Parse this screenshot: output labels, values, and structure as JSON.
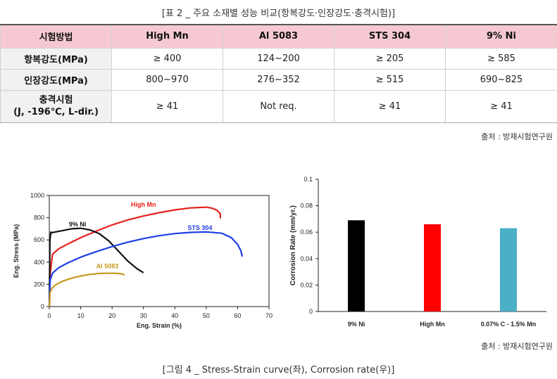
{
  "table_caption": "[표 2 _ 주요 소재별 성능 비교(항복강도·인장강도·충격시험)]",
  "table": {
    "headers": [
      "시험방법",
      "High Mn",
      "Al 5083",
      "STS 304",
      "9% Ni"
    ],
    "rows": [
      {
        "label": "항복강도(MPa)",
        "label_line2": "",
        "cells": [
          "≥ 400",
          "124~200",
          "≥ 205",
          "≥ 585"
        ]
      },
      {
        "label": "인장강도(MPa)",
        "label_line2": "",
        "cells": [
          "800~970",
          "276~352",
          "≥ 515",
          "690~825"
        ]
      },
      {
        "label": "충격시험",
        "label_line2": "(J, -196℃, L-dir.)",
        "cells": [
          "≥ 41",
          "Not req.",
          "≥ 41",
          "≥ 41"
        ]
      }
    ]
  },
  "source_top": "출처 : 방재시험연구원",
  "source_bottom": "출처 : 방재시험연구원",
  "figure_caption": "[그림 4 _ Stress-Strain curve(좌), Corrosion rate(우)]",
  "chart_data": [
    {
      "type": "line",
      "title": "",
      "xlabel": "Eng. Strain (%)",
      "ylabel": "Eng. Stress (MPa)",
      "xlim": [
        0,
        70
      ],
      "ylim": [
        0,
        1000
      ],
      "xticks": [
        0,
        10,
        20,
        30,
        40,
        50,
        60,
        70
      ],
      "yticks": [
        0,
        200,
        400,
        600,
        800,
        1000
      ],
      "grid": false,
      "series": [
        {
          "name": "High Mn",
          "color": "#e8201c",
          "x": [
            0,
            0.3,
            1,
            3,
            6,
            10,
            15,
            20,
            25,
            30,
            35,
            40,
            45,
            50,
            52,
            53.5,
            54.5,
            54.5
          ],
          "y": [
            0,
            300,
            470,
            520,
            565,
            620,
            680,
            735,
            780,
            815,
            845,
            870,
            888,
            895,
            885,
            865,
            835,
            795
          ]
        },
        {
          "name": "9% Ni",
          "color": "#111111",
          "x": [
            0,
            0.2,
            0.5,
            0.8,
            2,
            4,
            7,
            10,
            13,
            16,
            19,
            22,
            25,
            28,
            30
          ],
          "y": [
            0,
            600,
            670,
            665,
            672,
            682,
            700,
            705,
            690,
            655,
            590,
            500,
            410,
            340,
            305
          ]
        },
        {
          "name": "STS 304",
          "color": "#1f3ee8",
          "x": [
            0,
            0.3,
            1,
            3,
            6,
            10,
            15,
            20,
            25,
            30,
            35,
            40,
            45,
            50,
            55,
            58,
            60,
            61,
            61.5
          ],
          "y": [
            0,
            240,
            300,
            350,
            395,
            445,
            495,
            540,
            580,
            612,
            638,
            657,
            668,
            672,
            660,
            620,
            560,
            505,
            450
          ]
        },
        {
          "name": "Al 5083",
          "color": "#c79a1e",
          "x": [
            0,
            0.3,
            1,
            2,
            4,
            7,
            10,
            13,
            16,
            19,
            21,
            23,
            24
          ],
          "y": [
            0,
            130,
            170,
            195,
            225,
            255,
            275,
            290,
            298,
            300,
            300,
            295,
            285
          ]
        }
      ],
      "annotations": [
        {
          "text": "High Mn",
          "x": 30,
          "y": 900,
          "color": "#e8201c"
        },
        {
          "text": "9% Ni",
          "x": 9,
          "y": 720,
          "color": "#111111"
        },
        {
          "text": "STS 304",
          "x": 48,
          "y": 690,
          "color": "#1f3ee8"
        },
        {
          "text": "Al 5083",
          "x": 18.5,
          "y": 345,
          "color": "#c79a1e"
        }
      ]
    },
    {
      "type": "bar",
      "title": "",
      "xlabel": "",
      "ylabel": "Corrosion Rate (mm/yr.)",
      "ylim": [
        0,
        0.1
      ],
      "yticks": [
        "0",
        "0.02",
        "0.04",
        "0.06",
        "0.08",
        "0.1"
      ],
      "grid": false,
      "categories": [
        "9% Ni",
        "High Mn",
        "0.07% C - 1.5% Mn"
      ],
      "values": [
        0.069,
        0.066,
        0.063
      ],
      "colors": [
        "#000000",
        "#ff0000",
        "#4aafc7"
      ]
    }
  ]
}
